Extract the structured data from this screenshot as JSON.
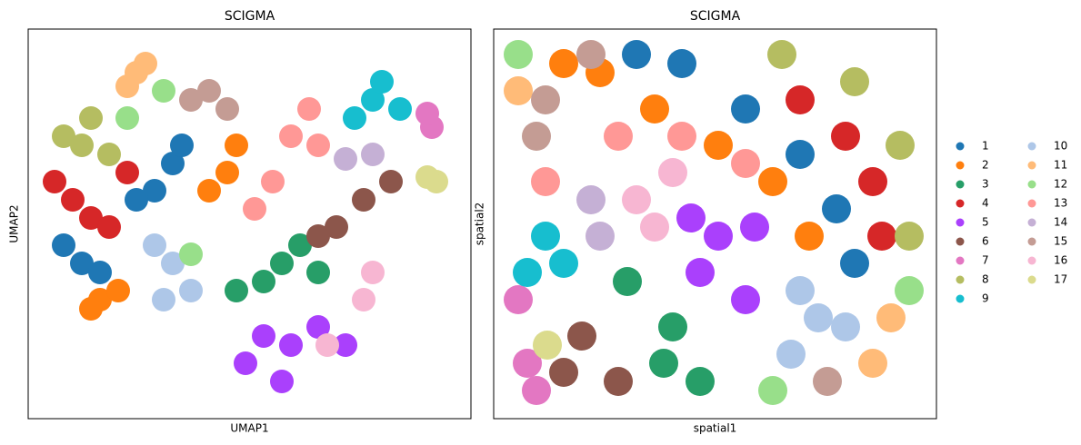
{
  "chart_data": [
    {
      "type": "scatter",
      "title": "SCIGMA",
      "xlabel": "UMAP1",
      "ylabel": "UMAP2",
      "xlim": [
        0,
        487
      ],
      "ylim": [
        0,
        429
      ],
      "marker_size": 13,
      "series": [
        {
          "x": [
            159,
            139,
            59,
            79,
            169,
            39,
            119
          ],
          "y": [
            281,
            251,
            171,
            161,
            301,
            191,
            241
          ]
        },
        {
          "x": [
            219,
            229,
            199,
            79,
            99,
            69
          ],
          "y": [
            271,
            301,
            251,
            131,
            141,
            121
          ]
        },
        {
          "x": [
            279,
            259,
            299,
            229,
            319
          ],
          "y": [
            171,
            151,
            191,
            141,
            161
          ]
        },
        {
          "x": [
            49,
            29,
            69,
            109,
            89
          ],
          "y": [
            241,
            261,
            221,
            271,
            211
          ]
        },
        {
          "x": [
            289,
            259,
            319,
            279,
            239,
            349
          ],
          "y": [
            81,
            91,
            101,
            41,
            61,
            81
          ]
        },
        {
          "x": [
            369,
            339,
            399,
            319
          ],
          "y": [
            241,
            211,
            261,
            201
          ]
        },
        {
          "x": [
            444,
            439
          ],
          "y": [
            321,
            336
          ]
        },
        {
          "x": [
            59,
            39,
            89,
            69
          ],
          "y": [
            301,
            311,
            291,
            331
          ]
        },
        {
          "x": [
            379,
            359,
            389,
            409
          ],
          "y": [
            351,
            331,
            371,
            341
          ]
        },
        {
          "x": [
            159,
            149,
            179,
            139
          ],
          "y": [
            171,
            131,
            141,
            191
          ]
        },
        {
          "x": [
            119,
            109,
            129
          ],
          "y": [
            381,
            366,
            391
          ]
        },
        {
          "x": [
            109,
            179,
            149
          ],
          "y": [
            331,
            181,
            361
          ]
        },
        {
          "x": [
            289,
            269,
            309,
            249,
            319
          ],
          "y": [
            311,
            261,
            341,
            231,
            301
          ]
        },
        {
          "x": [
            349,
            379
          ],
          "y": [
            286,
            291
          ]
        },
        {
          "x": [
            199,
            179,
            219
          ],
          "y": [
            361,
            351,
            341
          ]
        },
        {
          "x": [
            369,
            379,
            329
          ],
          "y": [
            131,
            161,
            81
          ]
        },
        {
          "x": [
            449,
            439
          ],
          "y": [
            261,
            266
          ]
        }
      ]
    },
    {
      "type": "scatter",
      "title": "SCIGMA",
      "xlabel": "spatial1",
      "ylabel": "spatial2",
      "xlim": [
        0,
        487
      ],
      "ylim": [
        0,
        429
      ],
      "marker_size": 16,
      "series": [
        {
          "x": [
            207,
            277,
            337,
            377,
            397,
            157
          ],
          "y": [
            391,
            341,
            291,
            231,
            171,
            401
          ]
        },
        {
          "x": [
            117,
            177,
            247,
            307,
            347,
            77
          ],
          "y": [
            381,
            341,
            301,
            261,
            201,
            391
          ]
        },
        {
          "x": [
            147,
            197,
            227,
            187
          ],
          "y": [
            151,
            101,
            41,
            61
          ]
        },
        {
          "x": [
            337,
            387,
            417,
            427
          ],
          "y": [
            351,
            311,
            261,
            201
          ]
        },
        {
          "x": [
            247,
            227,
            277,
            287,
            217
          ],
          "y": [
            201,
            161,
            131,
            211,
            221
          ]
        },
        {
          "x": [
            97,
            137,
            77
          ],
          "y": [
            91,
            41,
            51
          ]
        },
        {
          "x": [
            27,
            37,
            47
          ],
          "y": [
            131,
            61,
            31
          ]
        },
        {
          "x": [
            317,
            397,
            447,
            457
          ],
          "y": [
            401,
            371,
            301,
            201
          ]
        },
        {
          "x": [
            57,
            37,
            77
          ],
          "y": [
            201,
            161,
            171
          ]
        },
        {
          "x": [
            337,
            387,
            327,
            357
          ],
          "y": [
            141,
            101,
            71,
            111
          ]
        },
        {
          "x": [
            27,
            417,
            437
          ],
          "y": [
            361,
            61,
            111
          ]
        },
        {
          "x": [
            307,
            457,
            27
          ],
          "y": [
            31,
            141,
            401
          ]
        },
        {
          "x": [
            57,
            137,
            207,
            277
          ],
          "y": [
            261,
            311,
            311,
            281
          ]
        },
        {
          "x": [
            117,
            107
          ],
          "y": [
            201,
            241
          ]
        },
        {
          "x": [
            47,
            57,
            107,
            367
          ],
          "y": [
            311,
            351,
            401,
            41
          ]
        },
        {
          "x": [
            157,
            197,
            177
          ],
          "y": [
            241,
            271,
            211
          ]
        },
        {
          "x": [
            59
          ],
          "y": [
            81
          ]
        }
      ]
    }
  ],
  "legend": {
    "position": "right",
    "items": [
      {
        "name": "1",
        "color": "#1f77b4"
      },
      {
        "name": "2",
        "color": "#ff7f0e"
      },
      {
        "name": "3",
        "color": "#279e68"
      },
      {
        "name": "4",
        "color": "#d62728"
      },
      {
        "name": "5",
        "color": "#aa40fc"
      },
      {
        "name": "6",
        "color": "#8c564b"
      },
      {
        "name": "7",
        "color": "#e377c2"
      },
      {
        "name": "8",
        "color": "#b5bd61"
      },
      {
        "name": "9",
        "color": "#17becf"
      },
      {
        "name": "10",
        "color": "#aec7e8"
      },
      {
        "name": "11",
        "color": "#ffbb78"
      },
      {
        "name": "12",
        "color": "#98df8a"
      },
      {
        "name": "13",
        "color": "#ff9896"
      },
      {
        "name": "14",
        "color": "#c5b0d5"
      },
      {
        "name": "15",
        "color": "#c49c94"
      },
      {
        "name": "16",
        "color": "#f7b6d2"
      },
      {
        "name": "17",
        "color": "#dbdb8d"
      }
    ]
  }
}
